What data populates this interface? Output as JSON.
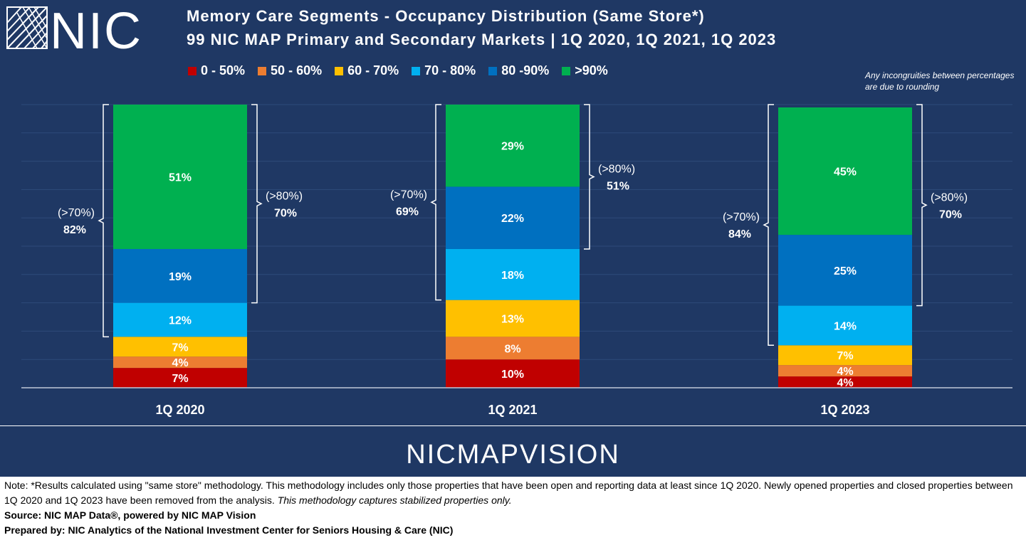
{
  "logo": {
    "text": "NIC",
    "icon": "nic-grid-logo-icon"
  },
  "title": {
    "line1": "Memory Care Segments - Occupancy Distribution (Same Store*)",
    "line2": "99 NIC MAP Primary and Secondary Markets |  1Q 2020, 1Q 2021, 1Q 2023"
  },
  "legend": [
    {
      "label": "0 - 50%",
      "color": "#c00000"
    },
    {
      "label": "50 - 60%",
      "color": "#ed7d31"
    },
    {
      "label": "60 - 70%",
      "color": "#ffc000"
    },
    {
      "label": "70 - 80%",
      "color": "#00b0f0"
    },
    {
      "label": "80 -90%",
      "color": "#0070c0"
    },
    {
      "label": ">90%",
      "color": "#00b050"
    }
  ],
  "rounding_note": "Any incongruities between percentages are due to rounding",
  "chart_data": {
    "type": "bar",
    "stacked": true,
    "categories": [
      "1Q 2020",
      "1Q 2021",
      "1Q 2023"
    ],
    "series": [
      {
        "name": "0 - 50%",
        "values": [
          7,
          10,
          4
        ],
        "labels": [
          "7%",
          "10%",
          "4%"
        ]
      },
      {
        "name": "50 - 60%",
        "values": [
          4,
          8,
          4
        ],
        "labels": [
          "4%",
          "8%",
          "4%"
        ]
      },
      {
        "name": "60 - 70%",
        "values": [
          7,
          13,
          7
        ],
        "labels": [
          "7%",
          "13%",
          "7%"
        ]
      },
      {
        "name": "70 - 80%",
        "values": [
          12,
          18,
          14
        ],
        "labels": [
          "12%",
          "18%",
          "14%"
        ]
      },
      {
        "name": "80 -90%",
        "values": [
          19,
          22,
          25
        ],
        "labels": [
          "19%",
          "22%",
          "25%"
        ]
      },
      {
        "name": ">90%",
        "values": [
          51,
          29,
          45
        ],
        "labels": [
          "51%",
          "29%",
          "45%"
        ]
      }
    ],
    "ylim": [
      0,
      100
    ],
    "brackets": [
      {
        "category": "1Q 2020",
        "side": "left",
        "from_value": 18,
        "to_value": 100,
        "label": "(>70%)",
        "value": "82%"
      },
      {
        "category": "1Q 2020",
        "side": "right",
        "from_value": 30,
        "to_value": 100,
        "label": "(>80%)",
        "value": "70%"
      },
      {
        "category": "1Q 2021",
        "side": "left",
        "from_value": 31,
        "to_value": 100,
        "label": "(>70%)",
        "value": "69%"
      },
      {
        "category": "1Q 2021",
        "side": "right",
        "from_value": 49,
        "to_value": 100,
        "label": "(>80%)",
        "value": "51%"
      },
      {
        "category": "1Q 2023",
        "side": "left",
        "from_value": 15,
        "to_value": 100,
        "label": "(>70%)",
        "value": "84%"
      },
      {
        "category": "1Q 2023",
        "side": "right",
        "from_value": 29,
        "to_value": 100,
        "label": "(>80%)",
        "value": "70%"
      }
    ]
  },
  "brand": "NICMAPVISION",
  "footer": {
    "note": "Note: *Results calculated using \"same store\" methodology. This methodology includes only those properties that have been open and reporting data at least since 1Q 2020. Newly opened properties and closed properties between 1Q 2020 and 1Q 2023 have been removed from the analysis. ",
    "note_italic": "This methodology captures stabilized properties only.",
    "source": "Source: NIC MAP Data®, powered by NIC MAP Vision",
    "prepared": "Prepared by: NIC Analytics of the National Investment Center for Seniors Housing & Care (NIC)"
  }
}
